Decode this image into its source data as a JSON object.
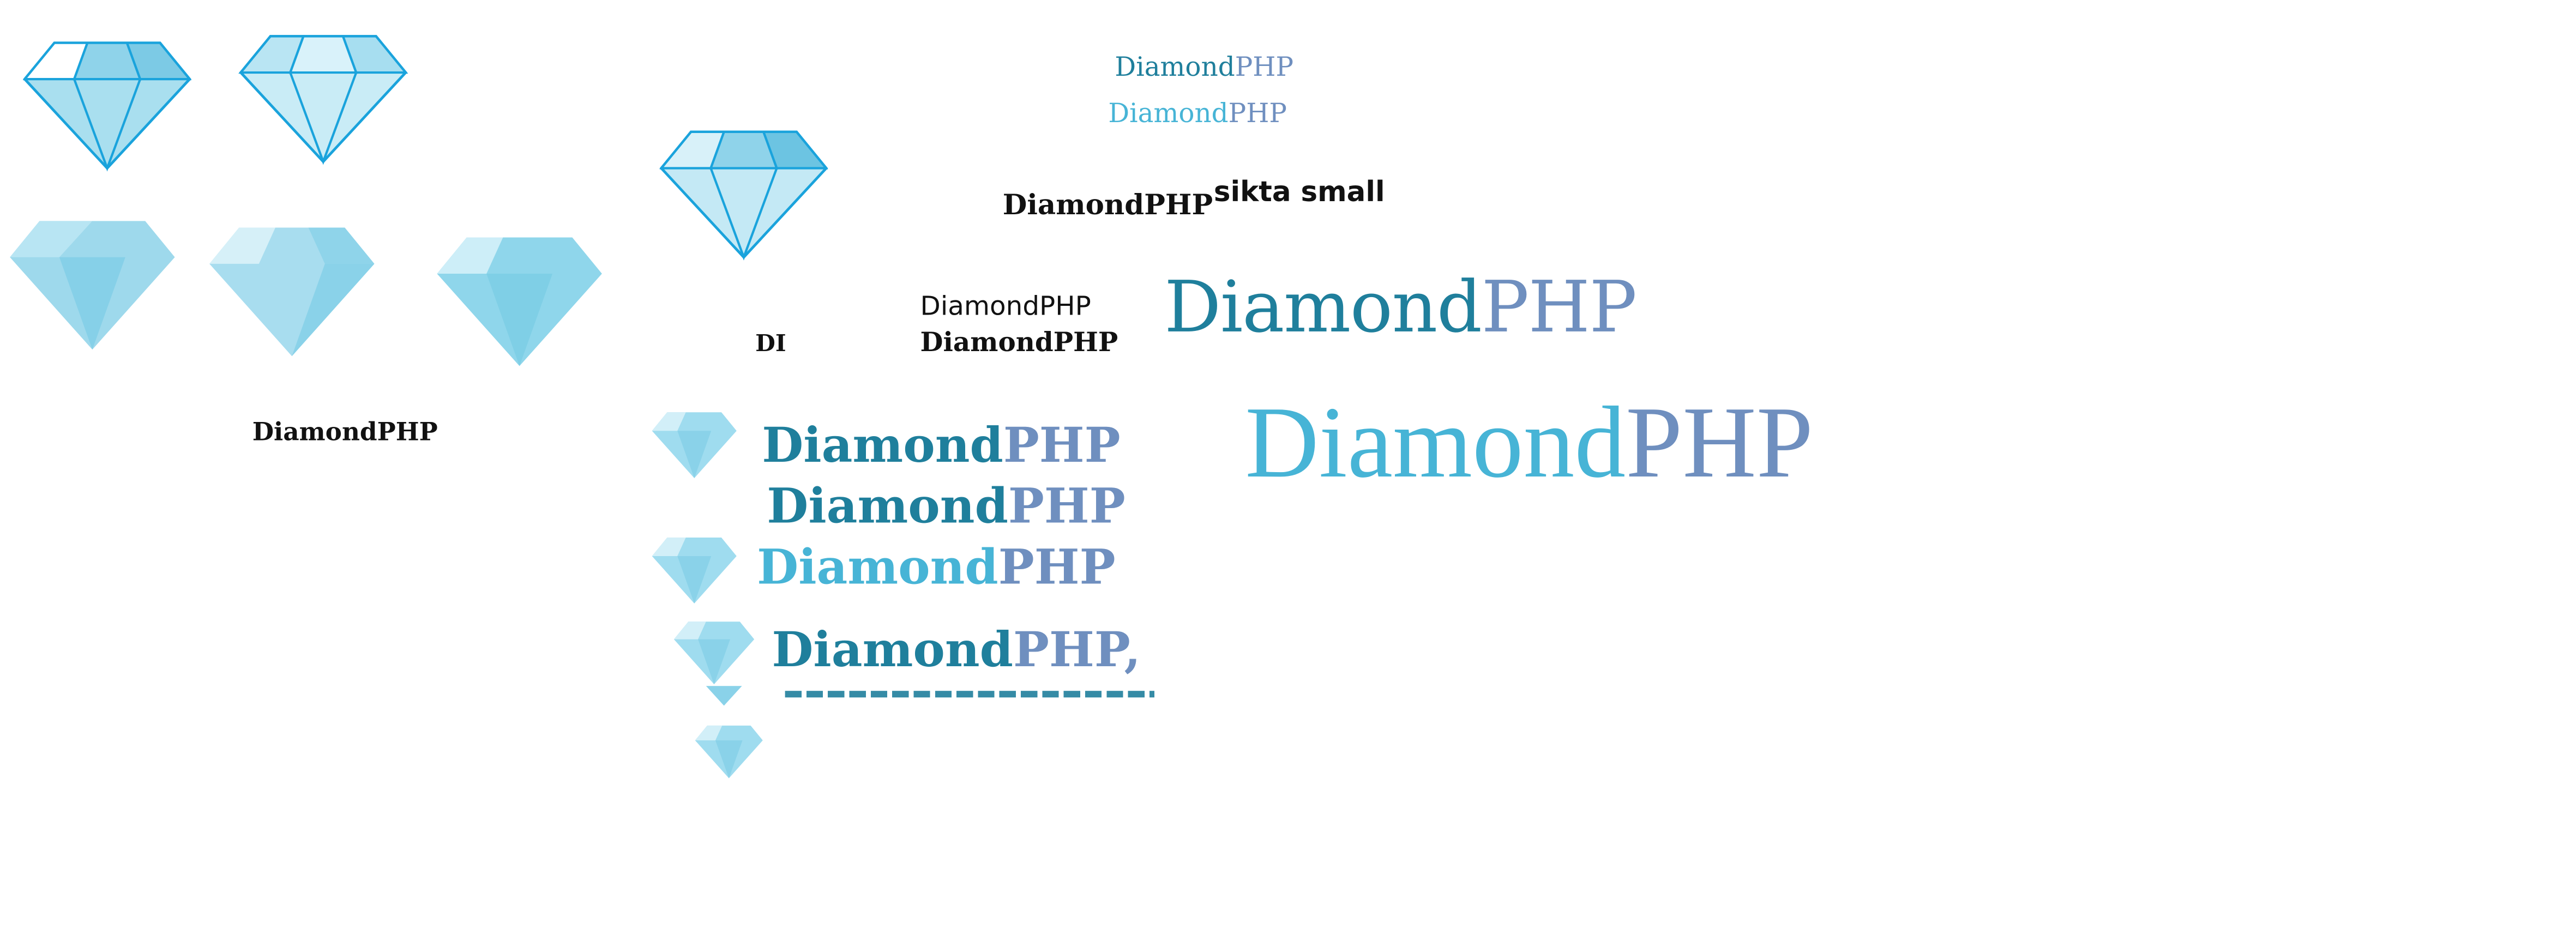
{
  "labels": {
    "top_a": {
      "word1": "Diamond",
      "word2": "PHP"
    },
    "top_b": {
      "word1": "Diamond",
      "word2": "PHP"
    },
    "title_bold": "DiamondPHP",
    "sikta": "sikta small",
    "left_caption": "DiamondPHP",
    "di": "DI",
    "mid_regular": "DiamondPHP",
    "mid_bold": "DiamondPHP",
    "large_a": {
      "word1": "Diamond",
      "word2": "PHP"
    },
    "large_b": {
      "word1": "Diamond",
      "word2": "PHP"
    },
    "row1": {
      "word1": "Diamond",
      "word2": "PHP"
    },
    "row2": {
      "word1": "Diamond",
      "word2": "PHP"
    },
    "row3": {
      "word1": "Diamond",
      "word2": "PHP"
    },
    "row4": {
      "word1": "Diamond",
      "word2": "PHP,"
    }
  },
  "colors": {
    "teal_dark": "#1f7f9c",
    "teal_light": "#47b4d6",
    "php_blue": "#6f8fbf",
    "gem_outline": "#1aa3dc",
    "gem_fill": "#9fdcef"
  },
  "icons": [
    "diamond-icon"
  ]
}
